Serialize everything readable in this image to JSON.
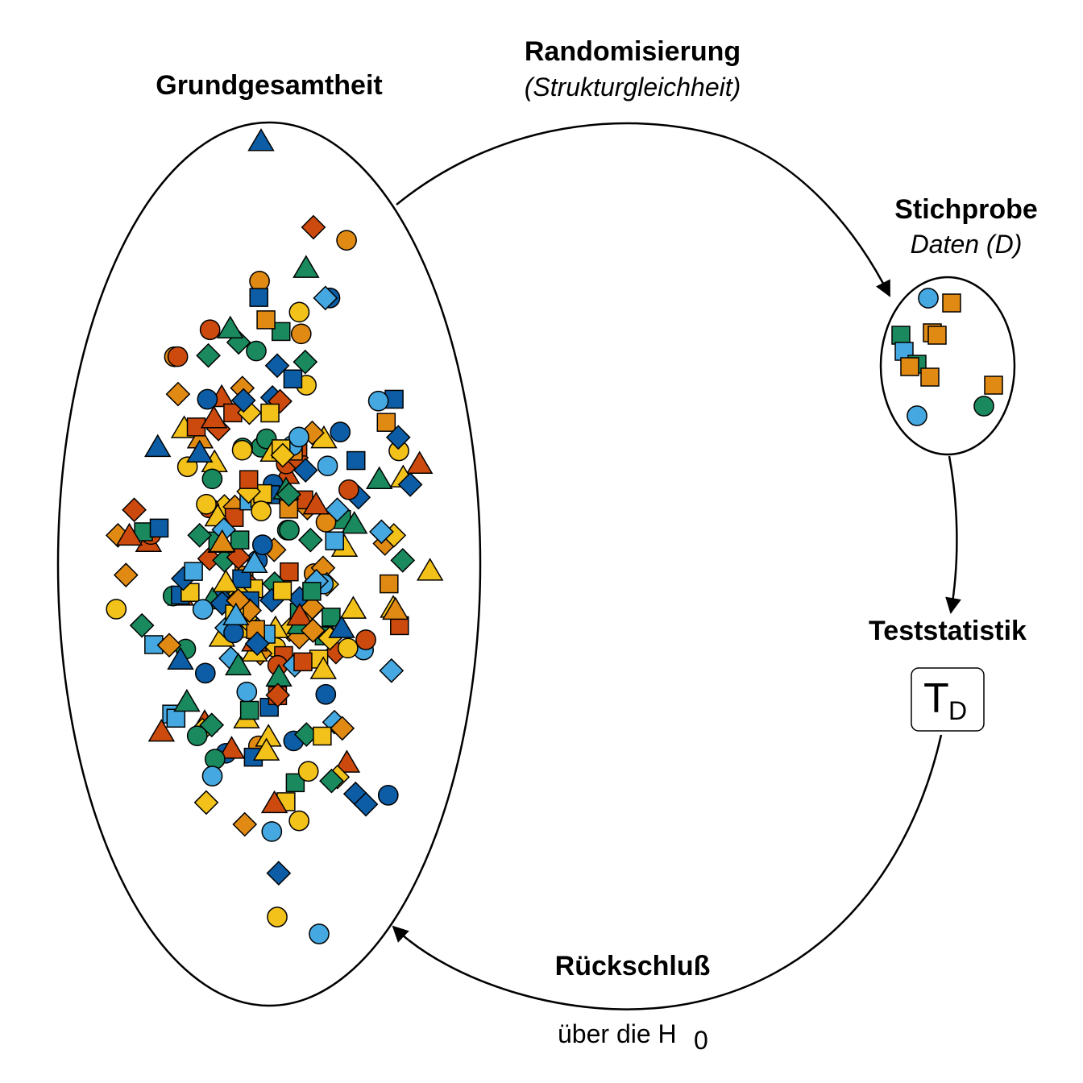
{
  "labels": {
    "population_title": "Grundgesamtheit",
    "randomization_title": "Randomisierung",
    "randomization_subtitle": "(Strukturgleichheit)",
    "sample_title": "Stichprobe",
    "sample_subtitle": "Daten (D)",
    "teststat_title": "Teststatistik",
    "teststat_symbol": "T",
    "teststat_subscript": "D",
    "inference_title": "Rückschluß",
    "inference_subtitle": "über die H",
    "inference_subscript": "0"
  },
  "colors": {
    "dark-blue": "#0C5DA5",
    "light-blue": "#46A8E0",
    "green": "#1A8A5E",
    "orange": "#E08A14",
    "red": "#CC4A0E",
    "yellow": "#F2C11A"
  },
  "marker_kinds": [
    "circle",
    "square",
    "diamond",
    "triangle"
  ],
  "population_count": 260,
  "sample_count": 12
}
